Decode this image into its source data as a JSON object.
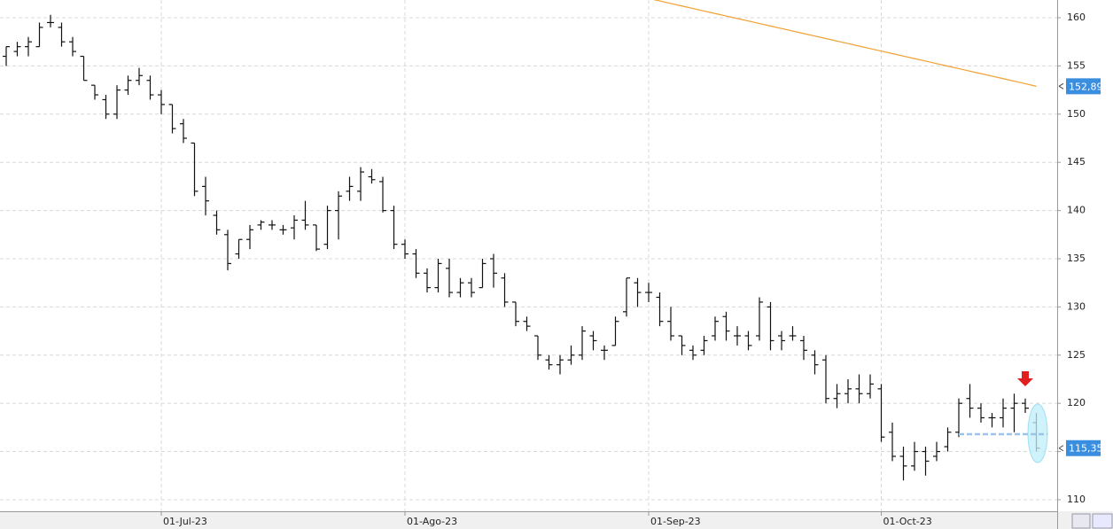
{
  "chart_data": {
    "type": "ohlc",
    "categories": [
      null,
      null,
      null,
      null,
      null,
      null,
      null,
      null,
      null,
      null,
      null,
      null,
      null,
      null,
      "01-Jul-23",
      null,
      null,
      null,
      null,
      null,
      null,
      null,
      null,
      null,
      null,
      null,
      null,
      null,
      null,
      null,
      null,
      null,
      null,
      null,
      null,
      null,
      "01-Ago-23",
      null,
      null,
      null,
      null,
      null,
      null,
      null,
      null,
      null,
      null,
      null,
      null,
      null,
      null,
      null,
      null,
      null,
      null,
      null,
      null,
      null,
      "01-Sep-23",
      null,
      null,
      null,
      null,
      null,
      null,
      null,
      null,
      null,
      null,
      null,
      null,
      null,
      null,
      null,
      null,
      null,
      null,
      null,
      null,
      "01-Oct-23",
      null,
      null,
      null,
      null,
      null,
      null,
      null,
      null,
      null,
      null,
      null,
      null,
      null,
      null
    ],
    "open": [
      156,
      156.5,
      157,
      157,
      159.5,
      159,
      157.5,
      156,
      153,
      151.5,
      150,
      152.5,
      153.5,
      153.5,
      152,
      151,
      149,
      147,
      142.5,
      139.5,
      137.5,
      135.5,
      137,
      138.5,
      138.5,
      138,
      138.2,
      139,
      138.5,
      136.5,
      140,
      142,
      142,
      143.5,
      143,
      140,
      136.5,
      135.5,
      133.5,
      132,
      134,
      131.5,
      132.5,
      132,
      135,
      133,
      130.5,
      128.5,
      127,
      124.5,
      124,
      124.5,
      125,
      127,
      125.5,
      126,
      129.5,
      132.5,
      131.5,
      131,
      128.5,
      127,
      125.5,
      125.5,
      127,
      129,
      127,
      127,
      127,
      130,
      127,
      127,
      126.5,
      125,
      124.5,
      120.5,
      121,
      121.5,
      121,
      121.5,
      117,
      114.5,
      113.5,
      115,
      114.5,
      115.5,
      117,
      120.5,
      119.5,
      118.5,
      118.5,
      119.5,
      120,
      118
    ],
    "high": [
      157,
      157.5,
      158,
      159.5,
      160.3,
      159.5,
      158,
      156,
      153,
      152,
      153,
      154,
      154.8,
      154,
      152.5,
      151,
      149.5,
      147,
      143.5,
      140,
      138,
      137,
      138.5,
      139,
      139,
      138.5,
      139.5,
      141,
      138.5,
      140.5,
      142,
      143.5,
      144.5,
      144.3,
      143.5,
      140.5,
      137,
      136,
      134,
      135,
      135,
      133,
      133,
      135,
      135.5,
      133.5,
      130.5,
      129,
      127,
      125,
      125,
      126,
      128,
      127.5,
      126,
      129,
      133,
      133,
      132.5,
      131.5,
      130,
      127,
      126,
      127,
      129,
      129.5,
      128,
      127.5,
      131,
      130.5,
      127.5,
      128,
      127,
      125.5,
      125,
      122,
      122.5,
      123,
      123,
      122,
      118,
      115.5,
      116,
      115.5,
      116,
      117.5,
      120.5,
      122,
      120,
      119,
      120.5,
      121,
      120.5,
      119
    ],
    "low": [
      155,
      156,
      156,
      157,
      159,
      157,
      156,
      153.5,
      151.5,
      149.5,
      149.5,
      152,
      153,
      151.5,
      150,
      148,
      147,
      141.5,
      139.5,
      137.5,
      133.8,
      135,
      136,
      138,
      138,
      137.5,
      137,
      138,
      135.8,
      136,
      137,
      141,
      141,
      142.8,
      139.8,
      136,
      135,
      133,
      131.5,
      131.5,
      131,
      131,
      131,
      132,
      132,
      130,
      128,
      127.5,
      124.5,
      123.5,
      123,
      124,
      124.5,
      125.5,
      124.5,
      126,
      129,
      130,
      130.5,
      128,
      126.5,
      125,
      124.5,
      125,
      126.5,
      126.5,
      126,
      125.5,
      126.5,
      125.5,
      125.5,
      126.5,
      124.5,
      123,
      120,
      119.5,
      120,
      120,
      120.5,
      116,
      114,
      112,
      113,
      112.5,
      114,
      115,
      116.5,
      118.5,
      118,
      117.5,
      117.5,
      117,
      119,
      115
    ],
    "close": [
      157,
      157,
      157.5,
      159,
      159.5,
      157.5,
      156.5,
      153.5,
      152,
      150,
      152.5,
      153.5,
      154,
      152,
      151,
      148.5,
      147.5,
      142,
      141,
      138,
      134.5,
      137,
      138,
      138.8,
      138.5,
      138,
      139,
      138.5,
      136,
      140,
      141.5,
      142.5,
      144,
      143.2,
      140,
      136.5,
      135.5,
      133.5,
      132,
      134.5,
      131.5,
      132.5,
      131.5,
      134.5,
      133.5,
      130.5,
      128.5,
      128,
      125,
      124,
      124.5,
      125,
      127.5,
      126.5,
      125.5,
      128.5,
      133,
      131.5,
      131.5,
      128.5,
      127,
      126,
      125,
      126.5,
      128.5,
      127.5,
      127,
      126,
      130.5,
      126.5,
      126.5,
      127,
      125.5,
      124,
      120.5,
      121,
      121.5,
      121,
      122,
      116.5,
      114.5,
      113.5,
      115,
      114,
      115,
      117,
      120,
      119.5,
      118.5,
      118.5,
      119.5,
      120,
      119.5,
      115.35
    ],
    "moving_average": {
      "color": "#f0a030",
      "values": [
        null,
        null,
        null,
        null,
        null,
        null,
        null,
        null,
        null,
        null,
        null,
        null,
        null,
        null,
        null,
        null,
        null,
        null,
        null,
        null,
        null,
        null,
        null,
        null,
        null,
        null,
        null,
        null,
        null,
        null,
        null,
        null,
        null,
        null,
        null,
        null,
        null,
        null,
        null,
        null,
        null,
        null,
        null,
        null,
        null,
        null,
        null,
        null,
        null,
        null,
        null,
        null,
        null,
        null,
        null,
        null,
        null,
        null,
        162.0,
        161.74,
        161.48,
        161.22,
        160.96,
        160.7,
        160.44,
        160.18,
        159.92,
        159.66,
        159.4,
        159.14,
        158.88,
        158.62,
        158.36,
        158.1,
        157.84,
        157.58,
        157.32,
        157.06,
        156.8,
        156.54,
        156.28,
        156.02,
        155.76,
        155.5,
        155.24,
        154.98,
        154.72,
        154.46,
        154.2,
        153.94,
        153.68,
        153.42,
        153.16,
        152.89
      ]
    },
    "ma_label": {
      "value": 152.89,
      "label": "152,89"
    },
    "close_label": {
      "value": 115.35,
      "label": "115,35"
    },
    "support_level": 116.8,
    "ylim": [
      108.8,
      161.84
    ],
    "yticks": [
      110,
      115,
      120,
      125,
      130,
      135,
      140,
      145,
      150,
      155,
      160
    ],
    "grid": true
  }
}
